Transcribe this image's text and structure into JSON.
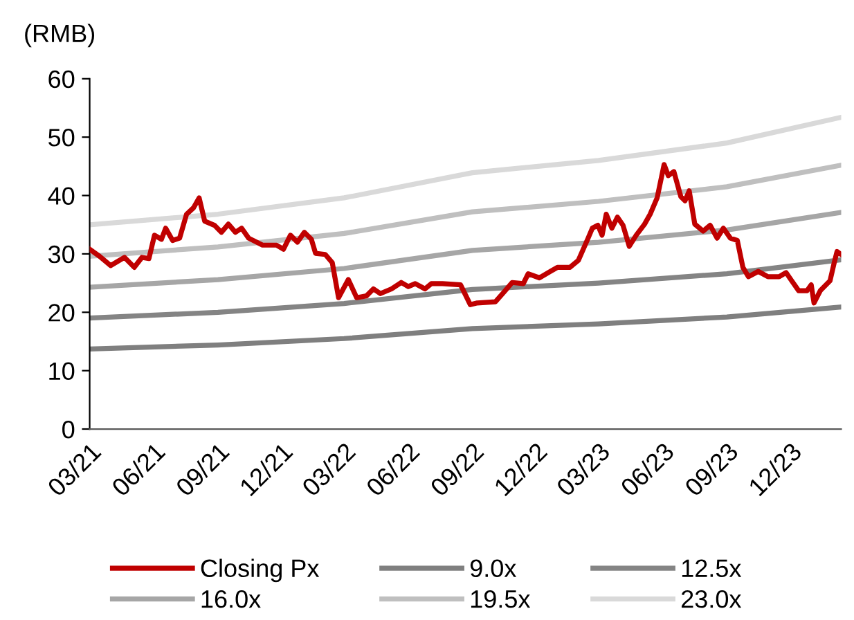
{
  "chart_data": {
    "type": "line",
    "ylabel": "(RMB)",
    "xlim": [
      "2021-03-01",
      "2024-02-12"
    ],
    "ylim": [
      0,
      60
    ],
    "yticks": [
      0,
      10,
      20,
      30,
      40,
      50,
      60
    ],
    "xticks": [
      {
        "value": "2021-03-01",
        "label": "03/21"
      },
      {
        "value": "2021-06-01",
        "label": "06/21"
      },
      {
        "value": "2021-09-01",
        "label": "09/21"
      },
      {
        "value": "2021-12-01",
        "label": "12/21"
      },
      {
        "value": "2022-03-01",
        "label": "03/22"
      },
      {
        "value": "2022-06-01",
        "label": "06/22"
      },
      {
        "value": "2022-09-01",
        "label": "09/22"
      },
      {
        "value": "2022-12-01",
        "label": "12/22"
      },
      {
        "value": "2023-03-01",
        "label": "03/23"
      },
      {
        "value": "2023-06-01",
        "label": "06/23"
      },
      {
        "value": "2023-09-01",
        "label": "09/23"
      },
      {
        "value": "2023-12-01",
        "label": "12/23"
      }
    ],
    "grid": false,
    "legend": "bottom",
    "marker": "none",
    "line_style": "solid",
    "series": [
      {
        "name": "Closing Px",
        "color": "#c00000",
        "x": [
          "2021-03-01",
          "2021-03-15",
          "2021-03-31",
          "2021-04-20",
          "2021-05-04",
          "2021-05-15",
          "2021-05-25",
          "2021-06-02",
          "2021-06-12",
          "2021-06-18",
          "2021-06-28",
          "2021-07-08",
          "2021-07-18",
          "2021-07-28",
          "2021-08-05",
          "2021-08-13",
          "2021-08-27",
          "2021-09-06",
          "2021-09-16",
          "2021-09-26",
          "2021-10-05",
          "2021-10-15",
          "2021-11-04",
          "2021-11-24",
          "2021-12-04",
          "2021-12-14",
          "2021-12-24",
          "2022-01-03",
          "2022-01-13",
          "2022-01-19",
          "2022-02-02",
          "2022-02-12",
          "2022-02-21",
          "2022-03-07",
          "2022-03-19",
          "2022-04-02",
          "2022-04-12",
          "2022-04-22",
          "2022-05-08",
          "2022-05-22",
          "2022-06-01",
          "2022-06-11",
          "2022-06-25",
          "2022-07-04",
          "2022-07-20",
          "2022-08-15",
          "2022-08-29",
          "2022-09-08",
          "2022-10-04",
          "2022-10-18",
          "2022-10-28",
          "2022-11-13",
          "2022-11-20",
          "2022-12-06",
          "2022-12-22",
          "2023-01-01",
          "2023-01-19",
          "2023-01-31",
          "2023-02-14",
          "2023-02-20",
          "2023-02-28",
          "2023-03-06",
          "2023-03-12",
          "2023-03-20",
          "2023-03-28",
          "2023-04-05",
          "2023-04-14",
          "2023-04-24",
          "2023-05-06",
          "2023-05-14",
          "2023-05-24",
          "2023-06-03",
          "2023-06-09",
          "2023-06-17",
          "2023-06-27",
          "2023-07-03",
          "2023-07-09",
          "2023-07-17",
          "2023-07-29",
          "2023-08-08",
          "2023-08-18",
          "2023-08-27",
          "2023-09-06",
          "2023-09-16",
          "2023-09-24",
          "2023-10-02",
          "2023-10-16",
          "2023-10-30",
          "2023-11-15",
          "2023-11-25",
          "2023-12-03",
          "2023-12-13",
          "2023-12-25",
          "2023-12-31",
          "2024-01-04",
          "2024-01-13",
          "2024-01-27",
          "2024-02-02",
          "2024-02-06",
          "2024-02-12"
        ],
        "values": [
          30.8,
          29.6,
          28.0,
          29.4,
          27.7,
          29.4,
          29.2,
          33.2,
          32.5,
          34.4,
          32.3,
          32.7,
          36.8,
          37.9,
          39.6,
          35.6,
          34.9,
          33.7,
          35.1,
          33.7,
          34.4,
          32.7,
          31.5,
          31.5,
          30.8,
          33.2,
          32.0,
          33.7,
          32.5,
          30.1,
          29.9,
          28.5,
          22.5,
          25.6,
          22.5,
          22.8,
          24.0,
          23.2,
          24.0,
          25.1,
          24.4,
          24.9,
          24.0,
          24.9,
          24.9,
          24.7,
          21.3,
          21.6,
          21.8,
          23.7,
          25.1,
          24.9,
          26.6,
          25.9,
          27.0,
          27.7,
          27.7,
          28.9,
          32.7,
          34.4,
          34.9,
          33.2,
          36.8,
          34.4,
          36.3,
          34.9,
          31.3,
          33.2,
          35.1,
          36.8,
          39.6,
          45.3,
          43.4,
          44.1,
          39.8,
          39.1,
          40.8,
          35.1,
          33.9,
          34.9,
          32.7,
          34.4,
          32.7,
          32.3,
          27.7,
          26.1,
          27.0,
          26.1,
          26.1,
          26.8,
          25.4,
          23.7,
          23.7,
          24.7,
          21.6,
          23.7,
          25.4,
          28.5,
          30.4,
          29.9
        ]
      },
      {
        "name": "9.0x",
        "color": "#7f7f7f",
        "x": [
          "2021-03-01",
          "2021-09-01",
          "2022-03-01",
          "2022-09-01",
          "2023-03-01",
          "2023-09-01",
          "2024-02-12"
        ],
        "values": [
          13.7,
          14.4,
          15.5,
          17.2,
          18.0,
          19.2,
          20.9
        ]
      },
      {
        "name": "12.5x",
        "color": "#848484",
        "x": [
          "2021-03-01",
          "2021-09-01",
          "2022-03-01",
          "2022-09-01",
          "2023-03-01",
          "2023-09-01",
          "2024-02-12"
        ],
        "values": [
          19.0,
          20.0,
          21.5,
          23.9,
          25.0,
          26.6,
          29.0
        ]
      },
      {
        "name": "16.0x",
        "color": "#a6a6a6",
        "x": [
          "2021-03-01",
          "2021-09-01",
          "2022-03-01",
          "2022-09-01",
          "2023-03-01",
          "2023-09-01",
          "2024-02-12"
        ],
        "values": [
          24.3,
          25.6,
          27.5,
          30.6,
          32.0,
          34.1,
          37.1
        ]
      },
      {
        "name": "19.5x",
        "color": "#bfbfbf",
        "x": [
          "2021-03-01",
          "2021-09-01",
          "2022-03-01",
          "2022-09-01",
          "2023-03-01",
          "2023-09-01",
          "2024-02-12"
        ],
        "values": [
          29.6,
          31.2,
          33.5,
          37.2,
          39.0,
          41.5,
          45.2
        ]
      },
      {
        "name": "23.0x",
        "color": "#d9d9d9",
        "x": [
          "2021-03-01",
          "2021-09-01",
          "2022-03-01",
          "2022-09-01",
          "2023-03-01",
          "2023-09-01",
          "2024-02-12"
        ],
        "values": [
          35.0,
          36.8,
          39.6,
          43.9,
          46.0,
          49.0,
          53.4
        ]
      }
    ]
  }
}
